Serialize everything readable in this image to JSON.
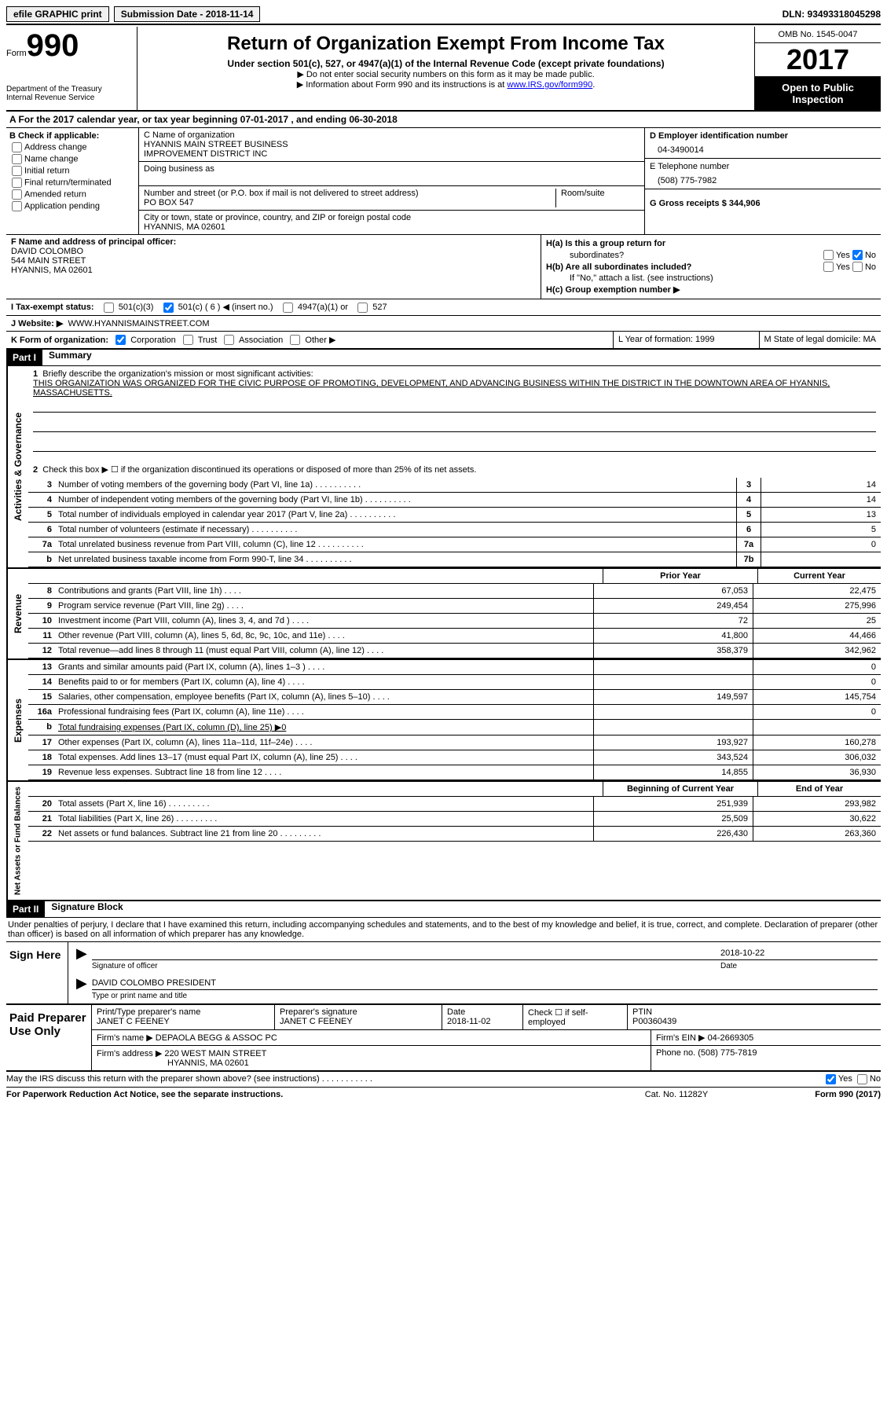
{
  "top": {
    "efile": "efile GRAPHIC print",
    "submission_label": "Submission Date - 2018-11-14",
    "dln": "DLN: 93493318045298"
  },
  "header": {
    "form_word": "Form",
    "form_num": "990",
    "dept1": "Department of the Treasury",
    "dept2": "Internal Revenue Service",
    "title": "Return of Organization Exempt From Income Tax",
    "subtitle": "Under section 501(c), 527, or 4947(a)(1) of the Internal Revenue Code (except private foundations)",
    "note1": "▶ Do not enter social security numbers on this form as it may be made public.",
    "note2_pre": "▶ Information about Form 990 and its instructions is at ",
    "note2_link": "www.IRS.gov/form990",
    "omb": "OMB No. 1545-0047",
    "year": "2017",
    "public1": "Open to Public",
    "public2": "Inspection"
  },
  "rowA": "A   For the 2017 calendar year, or tax year beginning 07-01-2017    , and ending 06-30-2018",
  "colB": {
    "title": "B Check if applicable:",
    "opts": [
      "Address change",
      "Name change",
      "Initial return",
      "Final return/terminated",
      "Amended return",
      "Application pending"
    ]
  },
  "colC": {
    "name_label": "C Name of organization",
    "name1": "HYANNIS MAIN STREET BUSINESS",
    "name2": "IMPROVEMENT DISTRICT INC",
    "dba": "Doing business as",
    "addr_label": "Number and street (or P.O. box if mail is not delivered to street address)",
    "room": "Room/suite",
    "addr": "PO BOX 547",
    "city_label": "City or town, state or province, country, and ZIP or foreign postal code",
    "city": "HYANNIS, MA  02601"
  },
  "colD": {
    "ein_label": "D Employer identification number",
    "ein": "04-3490014",
    "tel_label": "E Telephone number",
    "tel": "(508) 775-7982",
    "gross_label": "G Gross receipts $ 344,906"
  },
  "colF": {
    "label": "F  Name and address of principal officer:",
    "name": "DAVID COLOMBO",
    "addr1": "544 MAIN STREET",
    "addr2": "HYANNIS, MA  02601"
  },
  "colH": {
    "ha": "H(a)  Is this a group return for",
    "ha2": "subordinates?",
    "hb": "H(b)  Are all subordinates included?",
    "hb_note": "If \"No,\" attach a list. (see instructions)",
    "hc": "H(c)  Group exemption number ▶",
    "yes": "Yes",
    "no": "No"
  },
  "rowI": {
    "label": "I   Tax-exempt status:",
    "o1": "501(c)(3)",
    "o2": "501(c) ( 6 ) ◀ (insert no.)",
    "o3": "4947(a)(1) or",
    "o4": "527"
  },
  "rowJ": {
    "label": "J   Website: ▶",
    "val": "WWW.HYANNISMAINSTREET.COM"
  },
  "rowK": {
    "label": "K Form of organization:",
    "o1": "Corporation",
    "o2": "Trust",
    "o3": "Association",
    "o4": "Other ▶",
    "L": "L Year of formation: 1999",
    "M": "M State of legal domicile: MA"
  },
  "part1": {
    "tag": "Part I",
    "title": "Summary",
    "l1_label": "Briefly describe the organization's mission or most significant activities:",
    "l1_text": "THIS ORGANIZATION WAS ORGANIZED FOR THE CIVIC PURPOSE OF PROMOTING, DEVELOPMENT, AND ADVANCING BUSINESS WITHIN THE DISTRICT IN THE DOWNTOWN AREA OF HYANNIS, MASSACHUSETTS.",
    "l2": "Check this box ▶ ☐  if the organization discontinued its operations or disposed of more than 25% of its net assets.",
    "lines": [
      {
        "n": "3",
        "d": "Number of voting members of the governing body (Part VI, line 1a)",
        "b": "3",
        "v": "14"
      },
      {
        "n": "4",
        "d": "Number of independent voting members of the governing body (Part VI, line 1b)",
        "b": "4",
        "v": "14"
      },
      {
        "n": "5",
        "d": "Total number of individuals employed in calendar year 2017 (Part V, line 2a)",
        "b": "5",
        "v": "13"
      },
      {
        "n": "6",
        "d": "Total number of volunteers (estimate if necessary)",
        "b": "6",
        "v": "5"
      },
      {
        "n": "7a",
        "d": "Total unrelated business revenue from Part VIII, column (C), line 12",
        "b": "7a",
        "v": "0"
      },
      {
        "n": "b",
        "d": "Net unrelated business taxable income from Form 990-T, line 34",
        "b": "7b",
        "v": ""
      }
    ],
    "col_prior": "Prior Year",
    "col_current": "Current Year",
    "revenue": [
      {
        "n": "8",
        "d": "Contributions and grants (Part VIII, line 1h)",
        "p": "67,053",
        "c": "22,475"
      },
      {
        "n": "9",
        "d": "Program service revenue (Part VIII, line 2g)",
        "p": "249,454",
        "c": "275,996"
      },
      {
        "n": "10",
        "d": "Investment income (Part VIII, column (A), lines 3, 4, and 7d )",
        "p": "72",
        "c": "25"
      },
      {
        "n": "11",
        "d": "Other revenue (Part VIII, column (A), lines 5, 6d, 8c, 9c, 10c, and 11e)",
        "p": "41,800",
        "c": "44,466"
      },
      {
        "n": "12",
        "d": "Total revenue—add lines 8 through 11 (must equal Part VIII, column (A), line 12)",
        "p": "358,379",
        "c": "342,962"
      }
    ],
    "expenses": [
      {
        "n": "13",
        "d": "Grants and similar amounts paid (Part IX, column (A), lines 1–3 )",
        "p": "",
        "c": "0"
      },
      {
        "n": "14",
        "d": "Benefits paid to or for members (Part IX, column (A), line 4)",
        "p": "",
        "c": "0"
      },
      {
        "n": "15",
        "d": "Salaries, other compensation, employee benefits (Part IX, column (A), lines 5–10)",
        "p": "149,597",
        "c": "145,754"
      },
      {
        "n": "16a",
        "d": "Professional fundraising fees (Part IX, column (A), line 11e)",
        "p": "",
        "c": "0"
      },
      {
        "n": "b",
        "d": "Total fundraising expenses (Part IX, column (D), line 25) ▶0",
        "p": "SHADE",
        "c": "SHADE"
      },
      {
        "n": "17",
        "d": "Other expenses (Part IX, column (A), lines 11a–11d, 11f–24e)",
        "p": "193,927",
        "c": "160,278"
      },
      {
        "n": "18",
        "d": "Total expenses. Add lines 13–17 (must equal Part IX, column (A), line 25)",
        "p": "343,524",
        "c": "306,032"
      },
      {
        "n": "19",
        "d": "Revenue less expenses. Subtract line 18 from line 12",
        "p": "14,855",
        "c": "36,930"
      }
    ],
    "col_begin": "Beginning of Current Year",
    "col_end": "End of Year",
    "netassets": [
      {
        "n": "20",
        "d": "Total assets (Part X, line 16)",
        "p": "251,939",
        "c": "293,982"
      },
      {
        "n": "21",
        "d": "Total liabilities (Part X, line 26)",
        "p": "25,509",
        "c": "30,622"
      },
      {
        "n": "22",
        "d": "Net assets or fund balances. Subtract line 21 from line 20",
        "p": "226,430",
        "c": "263,360"
      }
    ],
    "vlabels": {
      "gov": "Activities & Governance",
      "rev": "Revenue",
      "exp": "Expenses",
      "net": "Net Assets or Fund Balances"
    }
  },
  "part2": {
    "tag": "Part II",
    "title": "Signature Block",
    "decl": "Under penalties of perjury, I declare that I have examined this return, including accompanying schedules and statements, and to the best of my knowledge and belief, it is true, correct, and complete. Declaration of preparer (other than officer) is based on all information of which preparer has any knowledge.",
    "sign_here": "Sign Here",
    "sig_officer": "Signature of officer",
    "date": "Date",
    "sig_date": "2018-10-22",
    "officer_name": "DAVID COLOMBO PRESIDENT",
    "type_name": "Type or print name and title",
    "paid_prep": "Paid Preparer Use Only",
    "prep_name_label": "Print/Type preparer's name",
    "prep_name": "JANET C FEENEY",
    "prep_sig_label": "Preparer's signature",
    "prep_sig": "JANET C FEENEY",
    "prep_date_label": "Date",
    "prep_date": "2018-11-02",
    "check_self": "Check ☐ if self-employed",
    "ptin_label": "PTIN",
    "ptin": "P00360439",
    "firm_name_label": "Firm's name    ▶",
    "firm_name": "DEPAOLA BEGG & ASSOC PC",
    "firm_ein_label": "Firm's EIN ▶",
    "firm_ein": "04-2669305",
    "firm_addr_label": "Firm's address ▶",
    "firm_addr1": "220 WEST MAIN STREET",
    "firm_addr2": "HYANNIS, MA  02601",
    "phone_label": "Phone no.",
    "phone": "(508) 775-7819",
    "discuss": "May the IRS discuss this return with the preparer shown above? (see instructions)",
    "yes": "Yes",
    "no": "No"
  },
  "footer": {
    "pra": "For Paperwork Reduction Act Notice, see the separate instructions.",
    "cat": "Cat. No. 11282Y",
    "form": "Form 990 (2017)"
  }
}
